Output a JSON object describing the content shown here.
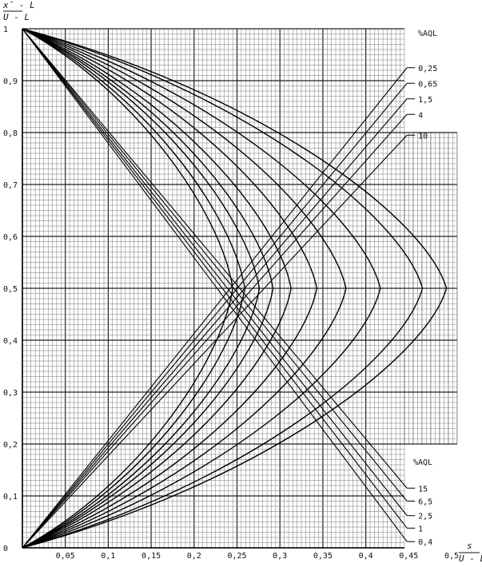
{
  "chart_data": {
    "type": "line",
    "ylabel_num": "x̄ - L",
    "ylabel_den": "U - L",
    "xlabel_num": "s",
    "xlabel_den": "U - L",
    "xlim": [
      0,
      0.5
    ],
    "ylim": [
      0,
      1
    ],
    "x_ticks": [
      "0,05",
      "0,1",
      "0,15",
      "0,2",
      "0,25",
      "0,3",
      "0,35",
      "0,4",
      "0,45",
      "0,5"
    ],
    "y_ticks": [
      "0",
      "0,1",
      "0,2",
      "0,3",
      "0,4",
      "0,5",
      "0,6",
      "0,7",
      "0,8",
      "0,9",
      "1"
    ],
    "grid": true,
    "legend_upper_title": "%AQL",
    "legend_upper": [
      "0,25",
      "0,65",
      "1,5",
      "4",
      "10"
    ],
    "legend_lower_title": "%AQL",
    "legend_lower": [
      "15",
      "6,5",
      "2,5",
      "1",
      "0,4"
    ],
    "series": [
      {
        "name": "0,25",
        "apex": 0.245
      },
      {
        "name": "0,65",
        "apex": 0.259
      },
      {
        "name": "1,5",
        "apex": 0.276
      },
      {
        "name": "2,5",
        "apex": 0.292
      },
      {
        "name": "4",
        "apex": 0.313
      },
      {
        "name": "6,5",
        "apex": 0.343
      },
      {
        "name": "10",
        "apex": 0.377
      },
      {
        "name": "15",
        "apex": 0.466
      },
      {
        "name": "1",
        "apex": 0.417
      },
      {
        "name": "0,4",
        "apex": 0.494
      }
    ]
  }
}
